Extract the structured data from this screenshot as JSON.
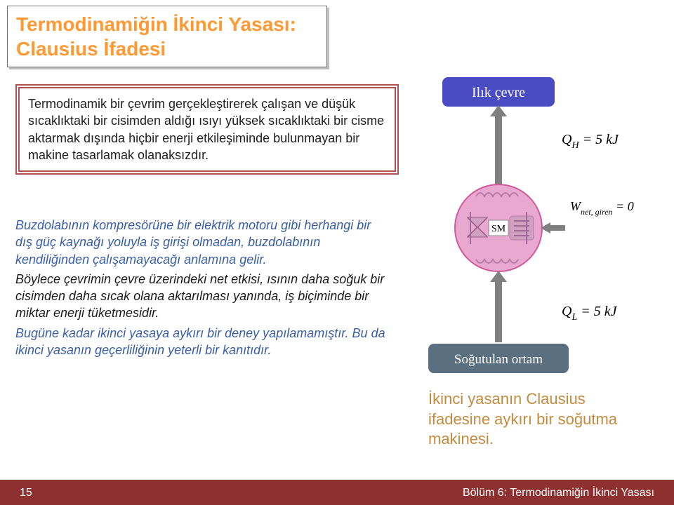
{
  "title": "Termodinamiğin İkinci Yasası:\nClausius İfadesi",
  "boxed_paragraph": "Termodinamik bir çevrim gerçekleştirerek çalışan ve düşük sıcaklıktaki bir cisimden aldığı ısıyı yüksek sıcaklıktaki bir cisme aktarmak dışında hiçbir enerji etkileşiminde bulunmayan bir makine tasarlamak olanaksızdır.",
  "p1": "Buzdolabının kompresörüne bir elektrik motoru gibi herhangi bir dış güç kaynağı yoluyla iş girişi olmadan, buzdolabının kendiliğinden çalışamayacağı anlamına gelir.",
  "p2": "Böylece çevrimin çevre üzerindeki net etkisi, ısının daha soğuk bir cisimden daha sıcak olana aktarılması yanında, iş biçiminde bir miktar enerji tüketmesidir.",
  "p3": "Bugüne kadar ikinci yasaya aykırı bir deney yapılamamıştır. Bu da ikinci yasanın geçerliliğinin yeterli bir kanıtıdır.",
  "caption": "İkinci yasanın Clausius ifadesine aykırı bir soğutma makinesi.",
  "footer": {
    "page": "15",
    "chapter": "Bölüm 6: Termodinamiğin İkinci Yasası"
  },
  "diagram": {
    "hot_label": "Ilık çevre",
    "qh": "Q",
    "qh_sub": "H",
    "qh_val": " = 5 kJ",
    "wnet": "W",
    "wnet_sub": "net, giren",
    "wnet_val": " = 0",
    "sm": "SM",
    "ql": "Q",
    "ql_sub": "L",
    "ql_val": " = 5 kJ",
    "cold_label": "Soğutulan ortam",
    "colors": {
      "hot_fill": "#4a4cc4",
      "cold_fill": "#5a7080",
      "circle_line": "#d05a9c",
      "circle_fill": "#e8a8d0",
      "inner_fill": "#d0a0c0",
      "arrow": "#808080"
    }
  }
}
